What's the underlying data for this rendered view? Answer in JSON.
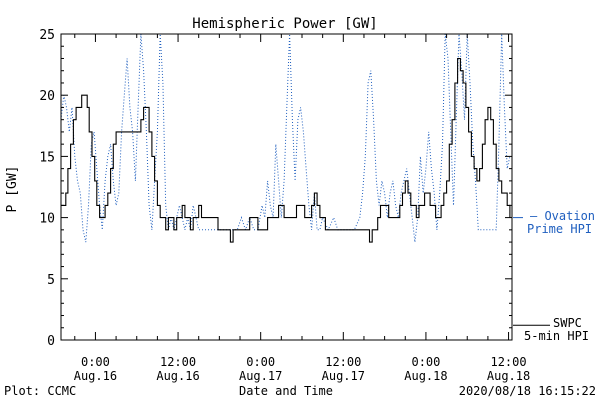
{
  "chart_data": {
    "type": "line",
    "title": "Hemispheric Power [GW]",
    "xlabel": "Date and Time",
    "ylabel": "P [GW]",
    "ylim": [
      0,
      25
    ],
    "yticks": [
      0,
      5,
      10,
      15,
      20,
      25
    ],
    "x_unit": "hours since 2020-08-15 00:00 UTC",
    "xlim": [
      19.0,
      84.5
    ],
    "xticks": [
      {
        "x": 24,
        "time": "0:00",
        "date": "Aug.16"
      },
      {
        "x": 36,
        "time": "12:00",
        "date": "Aug.16"
      },
      {
        "x": 48,
        "time": "0:00",
        "date": "Aug.17"
      },
      {
        "x": 60,
        "time": "12:00",
        "date": "Aug.17"
      },
      {
        "x": 72,
        "time": "0:00",
        "date": "Aug.18"
      },
      {
        "x": 84,
        "time": "12:00",
        "date": "Aug.18"
      }
    ],
    "grid": false,
    "series": [
      {
        "name": "SWPC 5-min HPI",
        "color": "#000000",
        "style": "solid",
        "points": [
          [
            19.0,
            11
          ],
          [
            19.4,
            11
          ],
          [
            19.7,
            12
          ],
          [
            20.0,
            14
          ],
          [
            20.4,
            16
          ],
          [
            20.8,
            18
          ],
          [
            21.2,
            19
          ],
          [
            21.6,
            19
          ],
          [
            22.0,
            20
          ],
          [
            22.4,
            20
          ],
          [
            22.8,
            19
          ],
          [
            23.1,
            17
          ],
          [
            23.5,
            15
          ],
          [
            23.9,
            13
          ],
          [
            24.2,
            11
          ],
          [
            24.6,
            10
          ],
          [
            25.0,
            10
          ],
          [
            25.4,
            11
          ],
          [
            25.8,
            12
          ],
          [
            26.2,
            14
          ],
          [
            26.6,
            16
          ],
          [
            27.0,
            17
          ],
          [
            27.6,
            17
          ],
          [
            28.5,
            17
          ],
          [
            29.4,
            17
          ],
          [
            30.2,
            17
          ],
          [
            30.6,
            18
          ],
          [
            31.0,
            19
          ],
          [
            31.4,
            19
          ],
          [
            31.8,
            17
          ],
          [
            32.2,
            15
          ],
          [
            32.6,
            13
          ],
          [
            33.0,
            11
          ],
          [
            33.4,
            10
          ],
          [
            33.8,
            10
          ],
          [
            34.2,
            9
          ],
          [
            34.6,
            10
          ],
          [
            35.0,
            10
          ],
          [
            35.4,
            9
          ],
          [
            35.8,
            10
          ],
          [
            36.2,
            10
          ],
          [
            36.6,
            11
          ],
          [
            37.0,
            10
          ],
          [
            37.4,
            10
          ],
          [
            37.8,
            9
          ],
          [
            38.2,
            10
          ],
          [
            38.6,
            10
          ],
          [
            39.0,
            11
          ],
          [
            39.4,
            10
          ],
          [
            40.0,
            10
          ],
          [
            41.0,
            10
          ],
          [
            41.8,
            9
          ],
          [
            42.5,
            9
          ],
          [
            43.2,
            9
          ],
          [
            43.6,
            8
          ],
          [
            44.0,
            9
          ],
          [
            44.5,
            9
          ],
          [
            45.0,
            9
          ],
          [
            45.5,
            9
          ],
          [
            46.0,
            9
          ],
          [
            46.4,
            10
          ],
          [
            46.8,
            10
          ],
          [
            47.2,
            10
          ],
          [
            47.6,
            9
          ],
          [
            48.2,
            9
          ],
          [
            49.0,
            10
          ],
          [
            49.8,
            10
          ],
          [
            50.6,
            11
          ],
          [
            51.4,
            10
          ],
          [
            52.0,
            10
          ],
          [
            52.6,
            10
          ],
          [
            53.2,
            11
          ],
          [
            53.8,
            11
          ],
          [
            54.4,
            10
          ],
          [
            55.0,
            10
          ],
          [
            55.4,
            11
          ],
          [
            55.8,
            12
          ],
          [
            56.2,
            11
          ],
          [
            56.6,
            10
          ],
          [
            57.0,
            10
          ],
          [
            57.4,
            9
          ],
          [
            58.2,
            9
          ],
          [
            59.0,
            9
          ],
          [
            59.8,
            9
          ],
          [
            60.6,
            9
          ],
          [
            61.4,
            9
          ],
          [
            62.2,
            9
          ],
          [
            63.0,
            9
          ],
          [
            63.8,
            8
          ],
          [
            64.2,
            9
          ],
          [
            64.6,
            9
          ],
          [
            65.0,
            10
          ],
          [
            65.4,
            11
          ],
          [
            65.8,
            11
          ],
          [
            66.2,
            11
          ],
          [
            66.6,
            10
          ],
          [
            67.0,
            10
          ],
          [
            67.4,
            10
          ],
          [
            67.8,
            10
          ],
          [
            68.2,
            11
          ],
          [
            68.6,
            12
          ],
          [
            69.0,
            13
          ],
          [
            69.4,
            12
          ],
          [
            69.8,
            11
          ],
          [
            70.2,
            11
          ],
          [
            70.6,
            10
          ],
          [
            71.0,
            11
          ],
          [
            71.4,
            11
          ],
          [
            71.8,
            12
          ],
          [
            72.2,
            12
          ],
          [
            72.6,
            11
          ],
          [
            73.0,
            11
          ],
          [
            73.4,
            10
          ],
          [
            73.8,
            10
          ],
          [
            74.2,
            11
          ],
          [
            74.6,
            12
          ],
          [
            75.0,
            13
          ],
          [
            75.4,
            16
          ],
          [
            75.8,
            18
          ],
          [
            76.2,
            21
          ],
          [
            76.6,
            23
          ],
          [
            77.0,
            22
          ],
          [
            77.4,
            21
          ],
          [
            77.8,
            19
          ],
          [
            78.2,
            17
          ],
          [
            78.6,
            15
          ],
          [
            79.0,
            14
          ],
          [
            79.4,
            13
          ],
          [
            79.8,
            14
          ],
          [
            80.2,
            16
          ],
          [
            80.6,
            18
          ],
          [
            81.0,
            19
          ],
          [
            81.4,
            18
          ],
          [
            81.8,
            16
          ],
          [
            82.2,
            14
          ],
          [
            82.6,
            13
          ],
          [
            83.0,
            12
          ],
          [
            83.4,
            12
          ],
          [
            83.8,
            11
          ],
          [
            84.2,
            10
          ]
        ]
      },
      {
        "name": "Ovation Prime HPI",
        "color": "#1f5fbf",
        "style": "dotted",
        "points": [
          [
            19.0,
            18
          ],
          [
            19.4,
            20
          ],
          [
            19.8,
            19
          ],
          [
            20.2,
            17
          ],
          [
            20.6,
            19
          ],
          [
            21.0,
            15
          ],
          [
            21.4,
            13
          ],
          [
            21.8,
            12
          ],
          [
            22.2,
            9
          ],
          [
            22.6,
            8
          ],
          [
            23.0,
            11
          ],
          [
            23.4,
            16
          ],
          [
            23.8,
            17
          ],
          [
            24.2,
            14
          ],
          [
            24.6,
            11
          ],
          [
            25.0,
            9
          ],
          [
            25.4,
            13
          ],
          [
            25.8,
            15
          ],
          [
            26.2,
            16
          ],
          [
            26.6,
            13
          ],
          [
            27.0,
            11
          ],
          [
            27.4,
            12
          ],
          [
            27.8,
            17
          ],
          [
            28.2,
            20
          ],
          [
            28.6,
            23
          ],
          [
            29.0,
            19
          ],
          [
            29.4,
            17
          ],
          [
            29.8,
            13
          ],
          [
            30.2,
            19
          ],
          [
            30.6,
            25
          ],
          [
            31.0,
            22
          ],
          [
            31.4,
            17
          ],
          [
            31.8,
            11
          ],
          [
            32.2,
            9
          ],
          [
            32.6,
            13
          ],
          [
            33.0,
            17
          ],
          [
            33.4,
            25
          ],
          [
            33.8,
            21
          ],
          [
            34.2,
            11
          ],
          [
            34.6,
            9
          ],
          [
            35.0,
            10
          ],
          [
            35.4,
            9
          ],
          [
            35.8,
            10
          ],
          [
            36.2,
            11
          ],
          [
            36.6,
            10
          ],
          [
            37.0,
            9
          ],
          [
            37.4,
            10
          ],
          [
            37.8,
            9
          ],
          [
            38.2,
            11
          ],
          [
            38.6,
            10
          ],
          [
            39.0,
            9
          ],
          [
            39.8,
            9
          ],
          [
            40.6,
            9
          ],
          [
            41.4,
            9
          ],
          [
            42.2,
            9
          ],
          [
            43.0,
            9
          ],
          [
            43.8,
            9
          ],
          [
            44.6,
            9
          ],
          [
            45.2,
            10
          ],
          [
            45.8,
            9
          ],
          [
            46.4,
            10
          ],
          [
            47.0,
            9
          ],
          [
            47.6,
            9
          ],
          [
            48.2,
            11
          ],
          [
            48.6,
            10
          ],
          [
            49.0,
            13
          ],
          [
            49.4,
            11
          ],
          [
            49.8,
            10
          ],
          [
            50.2,
            16
          ],
          [
            50.6,
            13
          ],
          [
            51.0,
            10
          ],
          [
            51.4,
            13
          ],
          [
            51.8,
            19
          ],
          [
            52.2,
            25
          ],
          [
            52.6,
            18
          ],
          [
            53.0,
            13
          ],
          [
            53.4,
            18
          ],
          [
            53.8,
            19
          ],
          [
            54.2,
            17
          ],
          [
            54.6,
            14
          ],
          [
            55.0,
            11
          ],
          [
            55.4,
            9
          ],
          [
            55.8,
            12
          ],
          [
            56.2,
            9
          ],
          [
            56.6,
            9
          ],
          [
            57.0,
            10
          ],
          [
            57.8,
            9
          ],
          [
            58.6,
            10
          ],
          [
            59.2,
            9
          ],
          [
            60.0,
            9
          ],
          [
            60.8,
            9
          ],
          [
            61.6,
            9
          ],
          [
            62.4,
            10
          ],
          [
            62.8,
            12
          ],
          [
            63.2,
            15
          ],
          [
            63.6,
            21
          ],
          [
            64.0,
            22
          ],
          [
            64.4,
            18
          ],
          [
            64.8,
            13
          ],
          [
            65.2,
            11
          ],
          [
            65.6,
            13
          ],
          [
            66.0,
            12
          ],
          [
            66.4,
            10
          ],
          [
            66.8,
            12
          ],
          [
            67.2,
            13
          ],
          [
            67.6,
            11
          ],
          [
            68.0,
            10
          ],
          [
            68.4,
            12
          ],
          [
            68.8,
            13
          ],
          [
            69.2,
            14
          ],
          [
            69.6,
            12
          ],
          [
            70.0,
            10
          ],
          [
            70.4,
            8
          ],
          [
            70.8,
            10
          ],
          [
            71.2,
            15
          ],
          [
            71.6,
            12
          ],
          [
            72.0,
            14
          ],
          [
            72.4,
            17
          ],
          [
            72.8,
            14
          ],
          [
            73.2,
            12
          ],
          [
            73.6,
            9
          ],
          [
            74.0,
            12
          ],
          [
            74.4,
            16
          ],
          [
            74.8,
            25
          ],
          [
            75.2,
            23
          ],
          [
            75.6,
            17
          ],
          [
            76.0,
            11
          ],
          [
            76.4,
            18
          ],
          [
            76.8,
            25
          ],
          [
            77.2,
            22
          ],
          [
            77.6,
            18
          ],
          [
            78.0,
            25
          ],
          [
            78.4,
            21
          ],
          [
            78.8,
            16
          ],
          [
            79.2,
            13
          ],
          [
            79.6,
            9
          ],
          [
            80.0,
            9
          ],
          [
            80.8,
            9
          ],
          [
            81.6,
            9
          ],
          [
            82.2,
            9
          ],
          [
            82.6,
            16
          ],
          [
            83.0,
            25
          ],
          [
            83.4,
            19
          ],
          [
            83.8,
            14
          ],
          [
            84.2,
            15
          ]
        ]
      }
    ],
    "right_labels": {
      "ovation_line1": "Ovation",
      "ovation_line2": "Prime HPI",
      "swpc_line1": "SWPC",
      "swpc_line2": "5-min HPI"
    },
    "ovation_marker_y": 10,
    "swpc_marker_y": 1.2
  },
  "footer": {
    "plot_credit": "Plot: CCMC",
    "axis_caption": "Date and Time",
    "timestamp": "2020/08/18 16:15:22"
  }
}
